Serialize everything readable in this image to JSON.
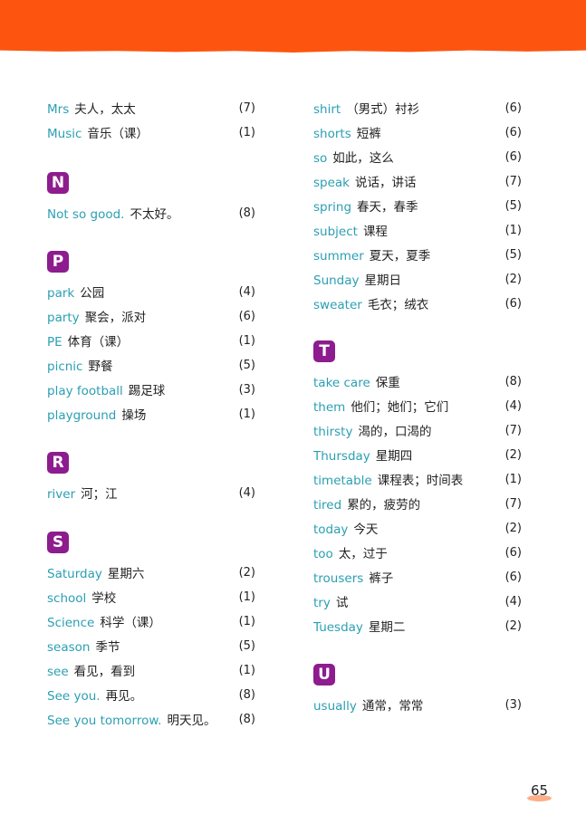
{
  "page_number": "65",
  "colors": {
    "banner": "#fd5510",
    "badge": "#8d1c8e",
    "english_text": "#2b9fb3"
  },
  "left_column": [
    {
      "letter": "",
      "entries": [
        {
          "en": "Mrs",
          "zh": "夫人，太太",
          "unit": "(7)"
        },
        {
          "en": "Music",
          "zh": "音乐（课）",
          "unit": "(1)"
        }
      ]
    },
    {
      "letter": "N",
      "entries": [
        {
          "en": "Not so good.",
          "zh": "不太好。",
          "unit": "(8)"
        }
      ]
    },
    {
      "letter": "P",
      "entries": [
        {
          "en": "park",
          "zh": "公园",
          "unit": "(4)"
        },
        {
          "en": "party",
          "zh": "聚会，派对",
          "unit": "(6)"
        },
        {
          "en": "PE",
          "zh": "体育（课）",
          "unit": "(1)"
        },
        {
          "en": "picnic",
          "zh": "野餐",
          "unit": "(5)"
        },
        {
          "en": "play football",
          "zh": "踢足球",
          "unit": "(3)"
        },
        {
          "en": "playground",
          "zh": "操场",
          "unit": "(1)"
        }
      ]
    },
    {
      "letter": "R",
      "entries": [
        {
          "en": "river",
          "zh": "河；江",
          "unit": "(4)"
        }
      ]
    },
    {
      "letter": "S",
      "entries": [
        {
          "en": "Saturday",
          "zh": "星期六",
          "unit": "(2)"
        },
        {
          "en": "school",
          "zh": "学校",
          "unit": "(1)"
        },
        {
          "en": "Science",
          "zh": "科学（课）",
          "unit": "(1)"
        },
        {
          "en": "season",
          "zh": "季节",
          "unit": "(5)"
        },
        {
          "en": "see",
          "zh": "看见，看到",
          "unit": "(1)"
        },
        {
          "en": "See you.",
          "zh": "再见。",
          "unit": "(8)"
        },
        {
          "en": "See you tomorrow.",
          "zh": "明天见。",
          "unit": "(8)"
        }
      ]
    }
  ],
  "right_column": [
    {
      "letter": "",
      "entries": [
        {
          "en": "shirt",
          "zh": "（男式）衬衫",
          "unit": "(6)"
        },
        {
          "en": "shorts",
          "zh": "短裤",
          "unit": "(6)"
        },
        {
          "en": "so",
          "zh": "如此，这么",
          "unit": "(6)"
        },
        {
          "en": "speak",
          "zh": "说话，讲话",
          "unit": "(7)"
        },
        {
          "en": "spring",
          "zh": "春天，春季",
          "unit": "(5)"
        },
        {
          "en": "subject",
          "zh": "课程",
          "unit": "(1)"
        },
        {
          "en": "summer",
          "zh": "夏天，夏季",
          "unit": "(5)"
        },
        {
          "en": "Sunday",
          "zh": "星期日",
          "unit": "(2)"
        },
        {
          "en": "sweater",
          "zh": "毛衣；绒衣",
          "unit": "(6)"
        }
      ]
    },
    {
      "letter": "T",
      "entries": [
        {
          "en": "take care",
          "zh": "保重",
          "unit": "(8)"
        },
        {
          "en": "them",
          "zh": "他们；她们；它们",
          "unit": "(4)"
        },
        {
          "en": "thirsty",
          "zh": "渴的，口渴的",
          "unit": "(7)"
        },
        {
          "en": "Thursday",
          "zh": "星期四",
          "unit": "(2)"
        },
        {
          "en": "timetable",
          "zh": "课程表；时间表",
          "unit": "(1)"
        },
        {
          "en": "tired",
          "zh": "累的，疲劳的",
          "unit": "(7)"
        },
        {
          "en": "today",
          "zh": "今天",
          "unit": "(2)"
        },
        {
          "en": "too",
          "zh": "太，过于",
          "unit": "(6)"
        },
        {
          "en": "trousers",
          "zh": "裤子",
          "unit": "(6)"
        },
        {
          "en": "try",
          "zh": "试",
          "unit": "(4)"
        },
        {
          "en": "Tuesday",
          "zh": "星期二",
          "unit": "(2)"
        }
      ]
    },
    {
      "letter": "U",
      "entries": [
        {
          "en": "usually",
          "zh": "通常，常常",
          "unit": "(3)"
        }
      ]
    }
  ]
}
